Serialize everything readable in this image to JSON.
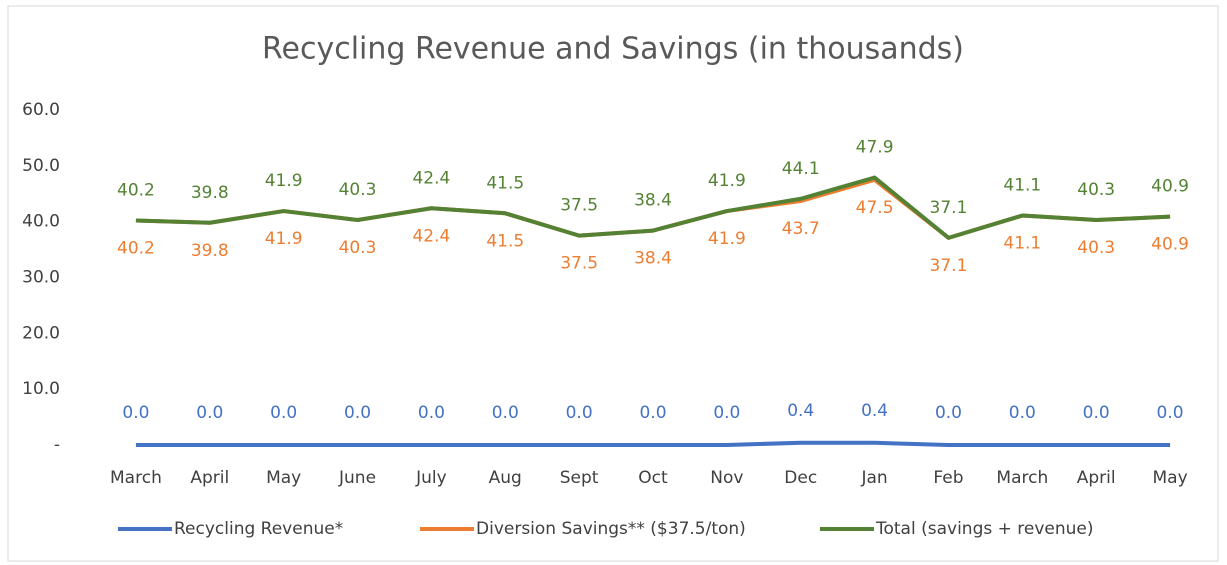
{
  "chart_data": {
    "type": "line",
    "title": "Recycling Revenue and Savings (in thousands)",
    "categories": [
      "March",
      "April",
      "May",
      "June",
      "July",
      "Aug",
      "Sept",
      "Oct",
      "Nov",
      "Dec",
      "Jan",
      "Feb",
      "March",
      "April",
      "May"
    ],
    "series": [
      {
        "name": "Recycling Revenue*",
        "color": "#4472c4",
        "values": [
          0,
          0,
          0,
          0,
          0,
          0,
          0,
          0,
          0,
          0.4,
          0.4,
          0,
          0,
          0,
          0
        ],
        "value_labels": [
          "0.0",
          "0.0",
          "0.0",
          "0.0",
          "0.0",
          "0.0",
          "0.0",
          "0.0",
          "0.0",
          "0.4",
          "0.4",
          "0.0",
          "0.0",
          "0.0",
          "0.0"
        ]
      },
      {
        "name": "Diversion Savings** ($37.5/ton)",
        "color": "#ed7d31",
        "values": [
          40.2,
          39.8,
          41.9,
          40.3,
          42.4,
          41.5,
          37.5,
          38.4,
          41.9,
          43.7,
          47.5,
          37.1,
          41.1,
          40.3,
          40.9
        ]
      },
      {
        "name": "Total (savings + revenue)",
        "color": "#548235",
        "values": [
          40.2,
          39.8,
          41.9,
          40.3,
          42.4,
          41.5,
          37.5,
          38.4,
          41.9,
          44.1,
          47.9,
          37.1,
          41.1,
          40.3,
          40.9
        ]
      }
    ],
    "ylim": [
      0,
      60
    ],
    "yticks": [
      {
        "value": 0,
        "label": "-"
      },
      {
        "value": 10,
        "label": "10.0"
      },
      {
        "value": 20,
        "label": "20.0"
      },
      {
        "value": 30,
        "label": "30.0"
      },
      {
        "value": 40,
        "label": "40.0"
      },
      {
        "value": 50,
        "label": "50.0"
      },
      {
        "value": 60,
        "label": "60.0"
      }
    ],
    "grid": false,
    "legend": "bottom"
  }
}
